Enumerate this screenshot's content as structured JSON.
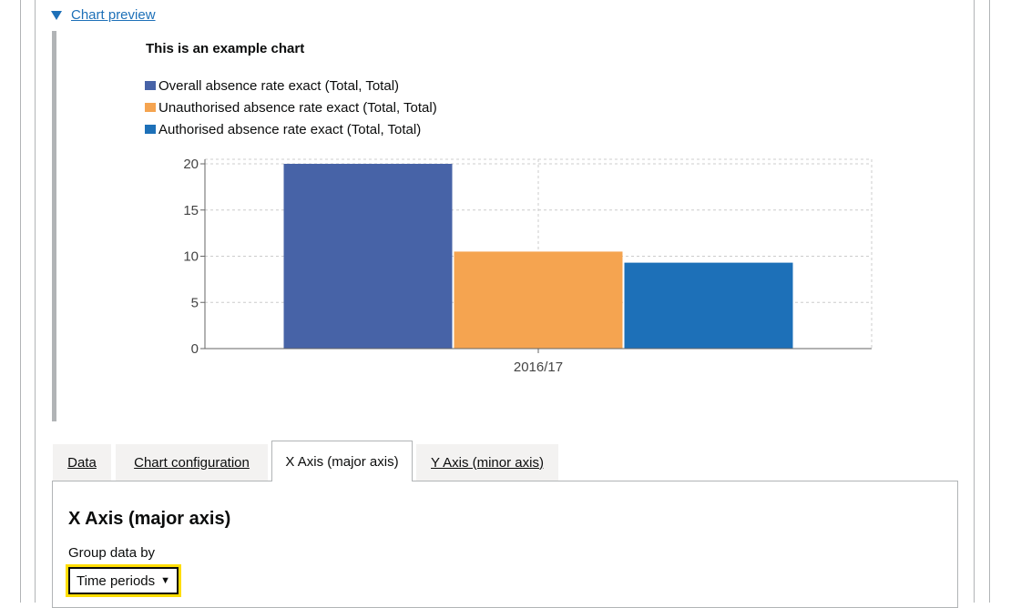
{
  "details": {
    "summary_label": "Chart preview",
    "summary_icon": "triangle-down-icon"
  },
  "chart_data": {
    "type": "bar",
    "title": "This is an example chart",
    "categories": [
      "2016/17"
    ],
    "series": [
      {
        "name": "Overall absence rate exact (Total, Total)",
        "values": [
          20
        ],
        "color": "#4763a7"
      },
      {
        "name": "Unauthorised absence rate exact (Total, Total)",
        "values": [
          10.5
        ],
        "color": "#f5a450"
      },
      {
        "name": "Authorised absence rate exact (Total, Total)",
        "values": [
          9.3
        ],
        "color": "#1d70b8"
      }
    ],
    "yticks": [
      "0",
      "5",
      "10",
      "15",
      "20"
    ],
    "ylim": [
      0,
      20
    ],
    "xlabel": "",
    "ylabel": "",
    "grid": true,
    "legend_position": "top"
  },
  "tabs": [
    {
      "label": "Data",
      "active": false
    },
    {
      "label": "Chart configuration",
      "active": false
    },
    {
      "label": "X Axis (major axis)",
      "active": true
    },
    {
      "label": "Y Axis (minor axis)",
      "active": false
    }
  ],
  "panel": {
    "title": "X Axis (major axis)",
    "group_label": "Group data by",
    "group_value": "Time periods"
  },
  "colors": {
    "link": "#1d70b8",
    "focus": "#ffdd00",
    "border": "#b1b4b6"
  }
}
